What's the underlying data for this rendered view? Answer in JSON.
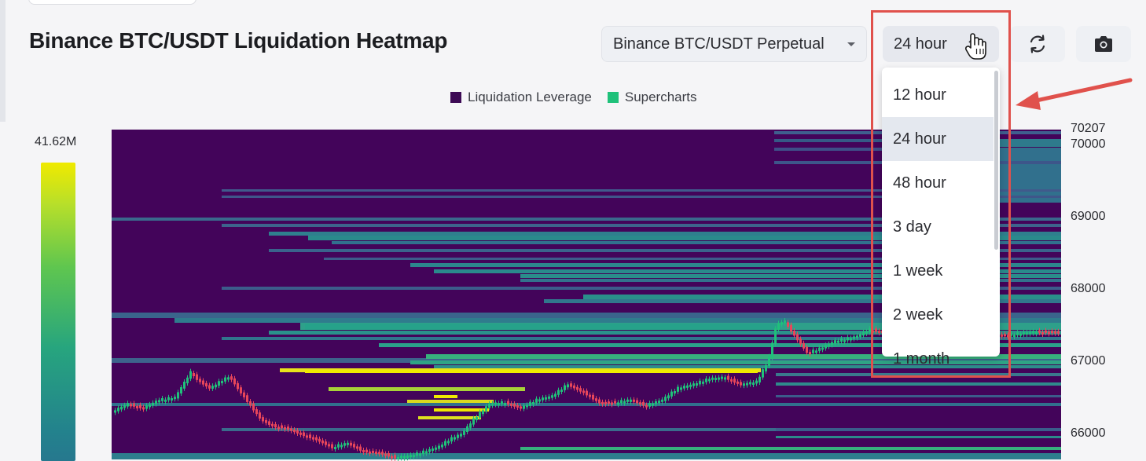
{
  "page": {
    "title": "Binance BTC/USDT Liquidation Heatmap"
  },
  "pair_select": {
    "value": "Binance BTC/USDT Perpetual"
  },
  "time_select": {
    "value": "24 hour"
  },
  "toolbar": {
    "refresh_icon": "refresh-icon",
    "camera_icon": "camera-icon"
  },
  "legend": [
    {
      "label": "Liquidation Leverage",
      "color": "#3d0a55"
    },
    {
      "label": "Supercharts",
      "color": "#1fc17a"
    }
  ],
  "scale": {
    "max_label": "41.62M"
  },
  "price_axis": [
    {
      "label": "70207"
    },
    {
      "label": "70000"
    },
    {
      "label": "69000"
    },
    {
      "label": "68000"
    },
    {
      "label": "67000"
    },
    {
      "label": "66000"
    }
  ],
  "dropdown": {
    "options": [
      {
        "label": "12 hour",
        "selected": false
      },
      {
        "label": "24 hour",
        "selected": true
      },
      {
        "label": "48 hour",
        "selected": false
      },
      {
        "label": "3 day",
        "selected": false
      },
      {
        "label": "1 week",
        "selected": false
      },
      {
        "label": "2 week",
        "selected": false
      },
      {
        "label": "1 month",
        "selected": false
      }
    ]
  },
  "colors": {
    "heatmap_bg": "#43045a",
    "highlight": "#e0514c",
    "candle_up": "#1fc17a",
    "candle_down": "#e8465a"
  }
}
